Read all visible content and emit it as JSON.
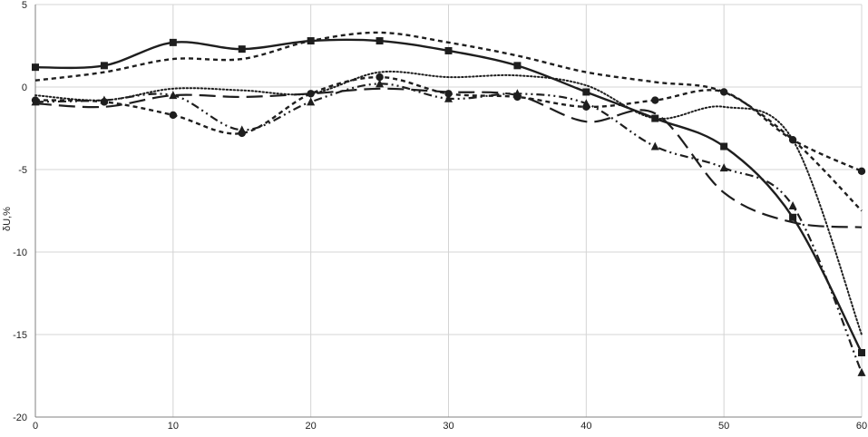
{
  "chart_data": {
    "type": "line",
    "title": "",
    "xlabel": "",
    "ylabel": "δU,%",
    "xlim": [
      0,
      60
    ],
    "ylim": [
      -20,
      5
    ],
    "x_ticks": [
      0,
      10,
      20,
      30,
      40,
      50,
      60
    ],
    "y_ticks": [
      5,
      0,
      -5,
      -10,
      -15,
      -20
    ],
    "grid": true,
    "legend": "none",
    "series": [
      {
        "style": "solid",
        "marker": "square",
        "x": [
          0,
          5,
          10,
          15,
          20,
          25,
          30,
          35,
          40,
          45,
          50,
          55,
          60
        ],
        "values": [
          1.2,
          1.3,
          2.7,
          2.3,
          2.8,
          2.8,
          2.2,
          1.3,
          -0.3,
          -1.9,
          -3.6,
          -7.9,
          -16.1
        ]
      },
      {
        "style": "short-dash",
        "marker": "none",
        "x": [
          0,
          5,
          10,
          15,
          20,
          25,
          30,
          35,
          40,
          45,
          50,
          55,
          60
        ],
        "values": [
          0.4,
          0.9,
          1.7,
          1.7,
          2.8,
          3.3,
          2.7,
          1.9,
          0.9,
          0.3,
          -0.3,
          -3.2,
          -7.5
        ]
      },
      {
        "style": "dotted",
        "marker": "none",
        "x": [
          0,
          5,
          10,
          15,
          20,
          25,
          30,
          35,
          40,
          45,
          50,
          55,
          60
        ],
        "values": [
          -0.5,
          -0.8,
          -0.1,
          -0.2,
          -0.4,
          0.9,
          0.6,
          0.7,
          0.1,
          -1.9,
          -1.2,
          -3.2,
          -15.0
        ]
      },
      {
        "style": "short-dash",
        "marker": "circle",
        "x": [
          0,
          5,
          10,
          15,
          20,
          25,
          30,
          35,
          40,
          45,
          50,
          55,
          60
        ],
        "values": [
          -0.8,
          -0.9,
          -1.7,
          -2.8,
          -0.4,
          0.6,
          -0.4,
          -0.6,
          -1.2,
          -0.8,
          -0.3,
          -3.2,
          -5.1
        ]
      },
      {
        "style": "dash-dot-dot",
        "marker": "triangle",
        "x": [
          0,
          5,
          10,
          15,
          20,
          25,
          30,
          35,
          40,
          45,
          50,
          55,
          60
        ],
        "values": [
          -0.9,
          -0.8,
          -0.5,
          -2.6,
          -0.9,
          0.2,
          -0.7,
          -0.4,
          -1.0,
          -3.6,
          -4.9,
          -7.2,
          -17.3
        ]
      },
      {
        "style": "long-dash",
        "marker": "none",
        "x": [
          0,
          5,
          10,
          15,
          20,
          25,
          30,
          35,
          40,
          45,
          50,
          55,
          60
        ],
        "values": [
          -1.0,
          -1.2,
          -0.5,
          -0.6,
          -0.4,
          -0.1,
          -0.3,
          -0.5,
          -2.1,
          -1.6,
          -6.4,
          -8.2,
          -8.5
        ]
      }
    ]
  }
}
